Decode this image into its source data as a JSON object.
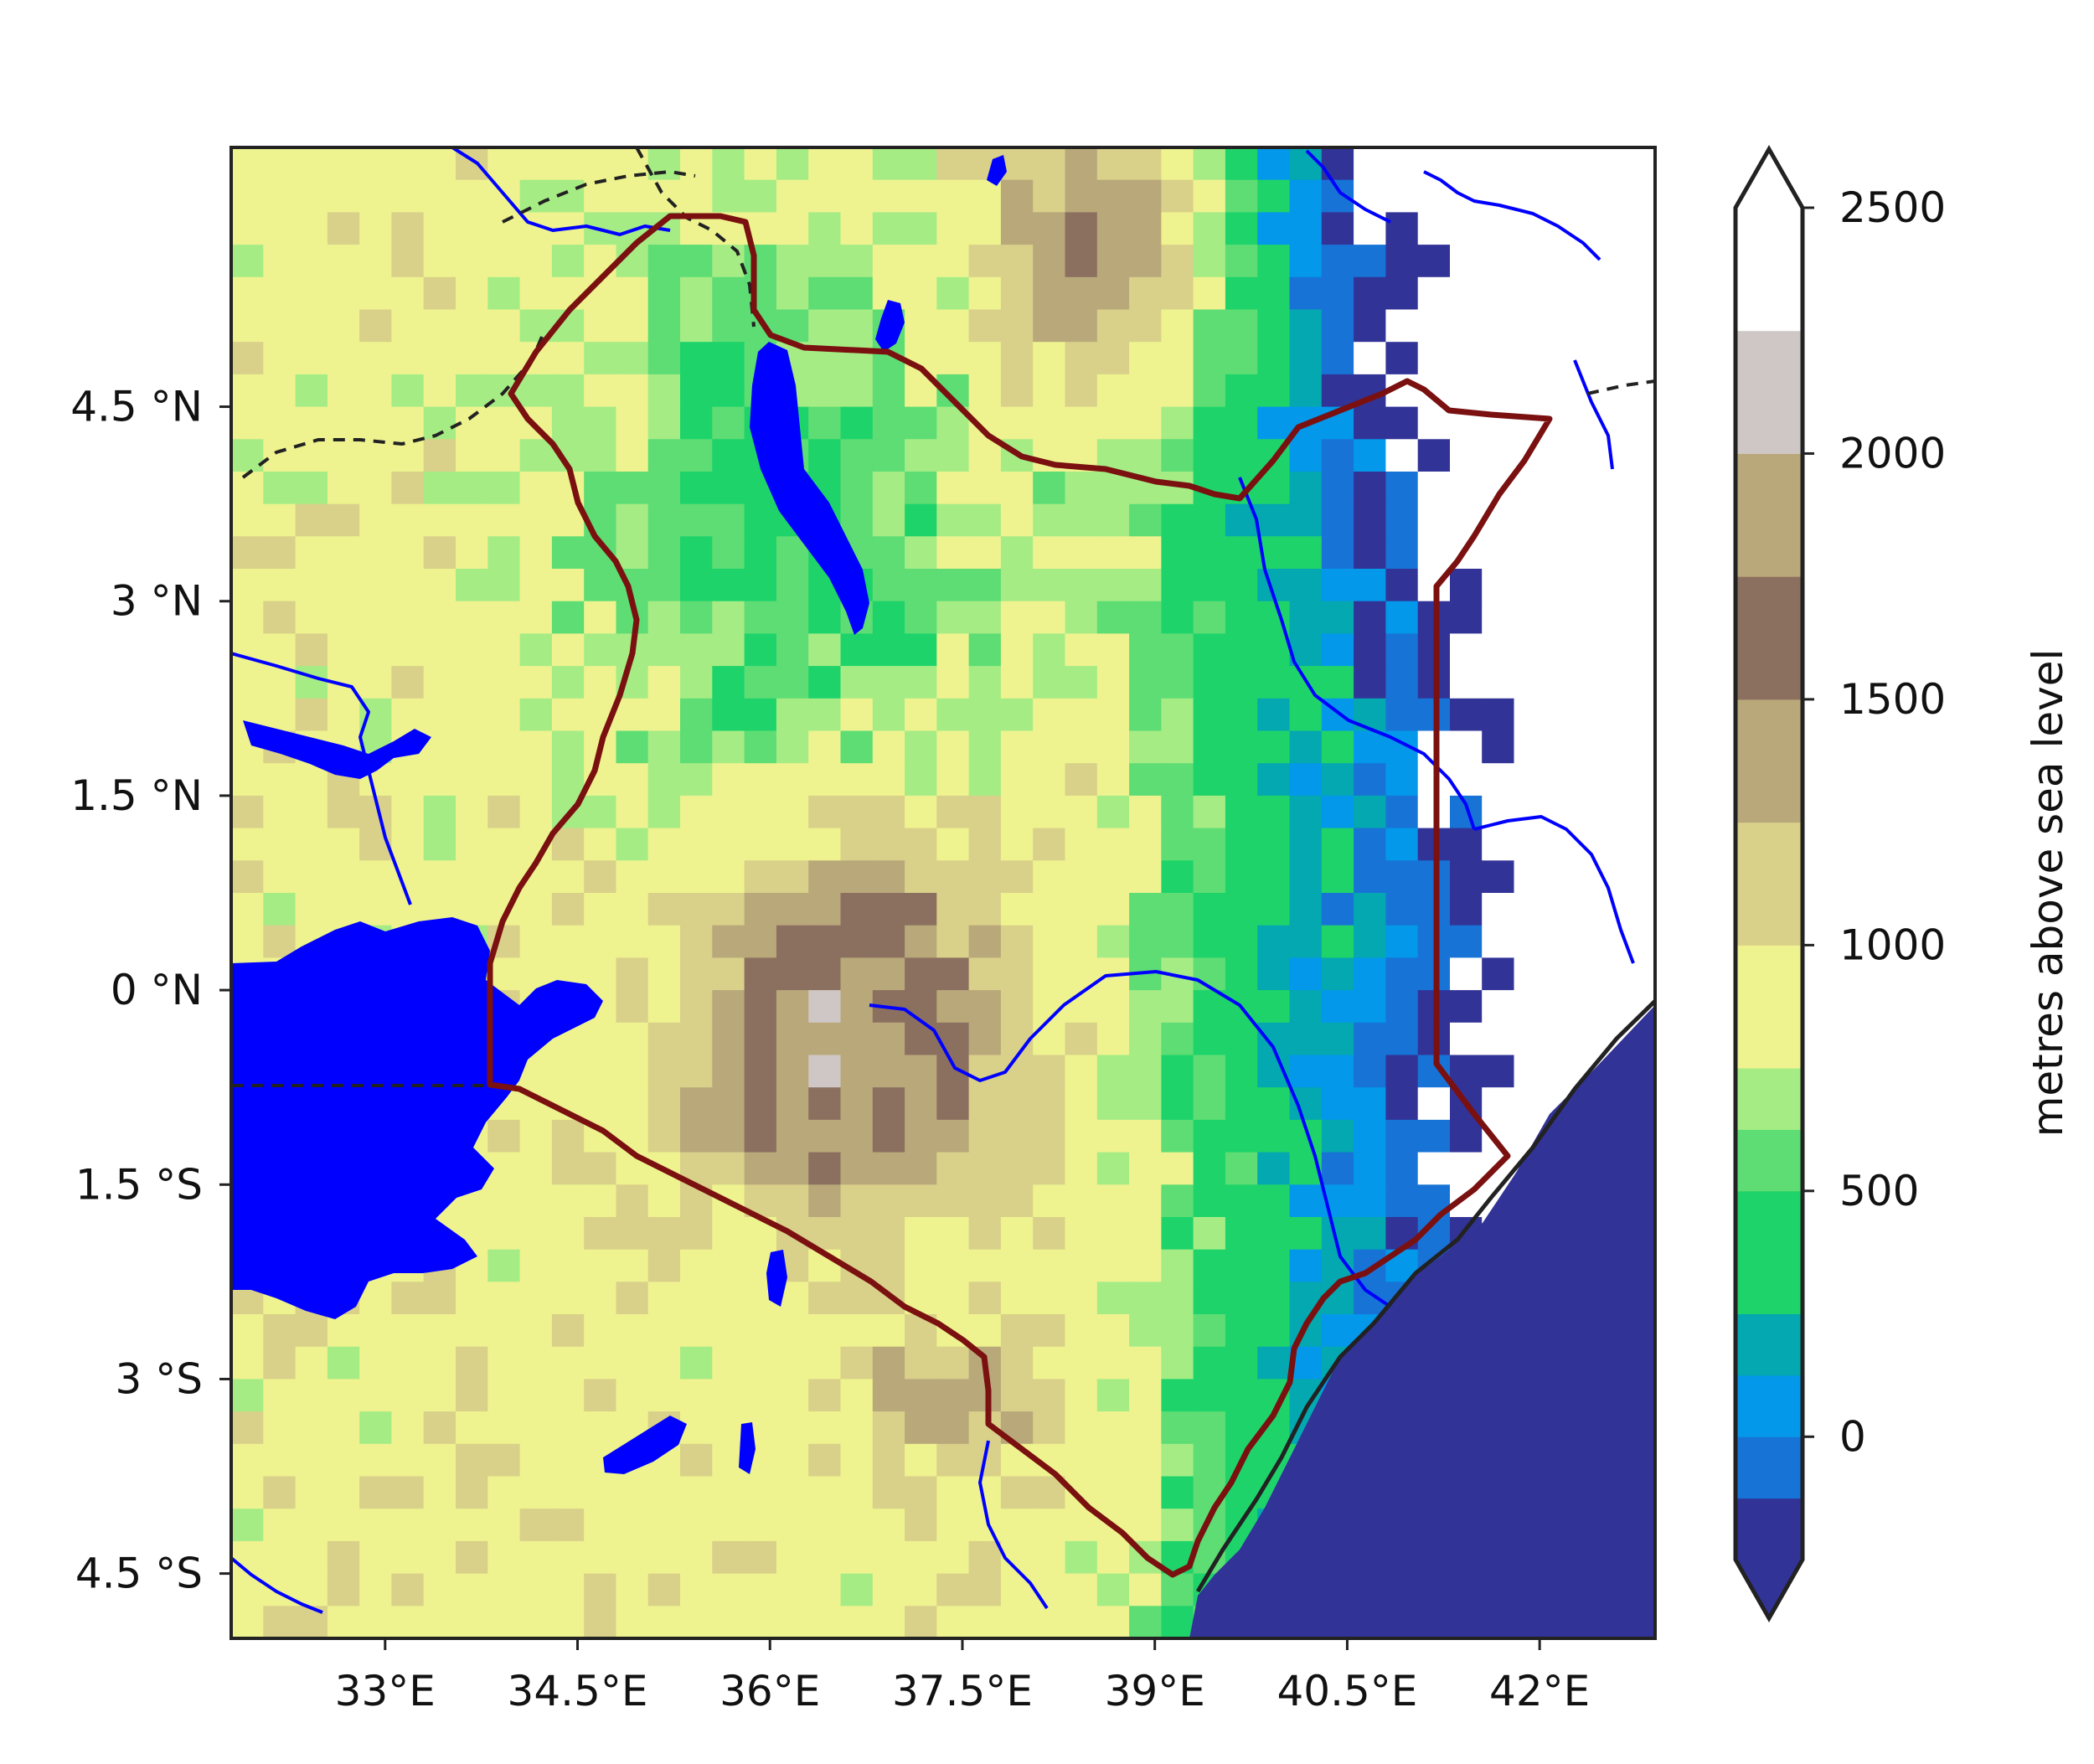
{
  "map": {
    "extent": {
      "lon_min": 31.8,
      "lon_max": 42.9,
      "lat_min": -5.0,
      "lat_max": 6.5
    },
    "lon_ticks": [
      {
        "value": 33.0,
        "label": "33°E"
      },
      {
        "value": 34.5,
        "label": "34.5°E"
      },
      {
        "value": 36.0,
        "label": "36°E"
      },
      {
        "value": 37.5,
        "label": "37.5°E"
      },
      {
        "value": 39.0,
        "label": "39°E"
      },
      {
        "value": 40.5,
        "label": "40.5°E"
      },
      {
        "value": 42.0,
        "label": "42°E"
      }
    ],
    "lat_ticks": [
      {
        "value": 4.5,
        "label": "4.5 °N"
      },
      {
        "value": 3.0,
        "label": "3 °N"
      },
      {
        "value": 1.5,
        "label": "1.5 °N"
      },
      {
        "value": 0.0,
        "label": "0 °N"
      },
      {
        "value": -1.5,
        "label": "1.5 °S"
      },
      {
        "value": -3.0,
        "label": "3 °S"
      },
      {
        "value": -4.5,
        "label": "4.5 °S"
      }
    ],
    "colors": {
      "water": "#0000ff",
      "ocean": "#323397",
      "kenya_border": "#7a1010",
      "country_border": "#222222"
    }
  },
  "colorbar": {
    "label": "metres above sea level",
    "min": -250,
    "max": 2500,
    "ticks": [
      {
        "value": 2500,
        "label": "2500"
      },
      {
        "value": 2000,
        "label": "2000"
      },
      {
        "value": 1500,
        "label": "1500"
      },
      {
        "value": 1000,
        "label": "1000"
      },
      {
        "value": 500,
        "label": "500"
      },
      {
        "value": 0,
        "label": "0"
      }
    ],
    "bins": [
      {
        "lo": -250,
        "hi": -125,
        "color": "#323397"
      },
      {
        "lo": -125,
        "hi": 0,
        "color": "#1873d6"
      },
      {
        "lo": 0,
        "hi": 125,
        "color": "#0398ea"
      },
      {
        "lo": 125,
        "hi": 250,
        "color": "#03a8b0"
      },
      {
        "lo": 250,
        "hi": 500,
        "color": "#1ed46a"
      },
      {
        "lo": 500,
        "hi": 625,
        "color": "#5ddd74"
      },
      {
        "lo": 625,
        "hi": 750,
        "color": "#a6ec85"
      },
      {
        "lo": 750,
        "hi": 1000,
        "color": "#eef38f"
      },
      {
        "lo": 1000,
        "hi": 1250,
        "color": "#d9d08a"
      },
      {
        "lo": 1250,
        "hi": 1500,
        "color": "#b9a87a"
      },
      {
        "lo": 1500,
        "hi": 1750,
        "color": "#8b7060"
      },
      {
        "lo": 1750,
        "hi": 2000,
        "color": "#b9a87a"
      },
      {
        "lo": 2000,
        "hi": 2250,
        "color": "#cfc7c5"
      },
      {
        "lo": 2250,
        "hi": 2500,
        "color": "#ffffff"
      }
    ],
    "extend_top_color": "#ffffff",
    "extend_bottom_color": "#323397"
  }
}
